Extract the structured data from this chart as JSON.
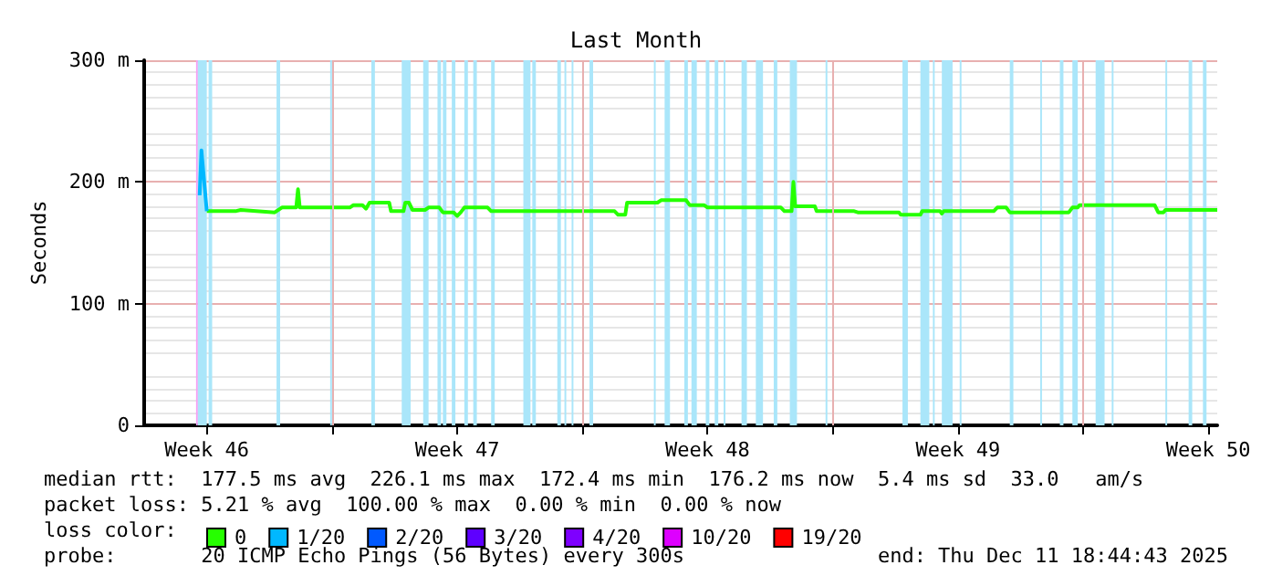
{
  "chart_data": {
    "type": "line",
    "title": "Last Month",
    "ylabel": "Seconds",
    "xlim": [
      "2025-11-11T18:00",
      "2025-12-11T18:00"
    ],
    "xticks": [
      {
        "value": "2025-11-13T12:00",
        "label": "Week 46"
      },
      {
        "value": "2025-11-17T00:00",
        "label": null
      },
      {
        "value": "2025-11-20T12:00",
        "label": "Week 47"
      },
      {
        "value": "2025-11-24T00:00",
        "label": null
      },
      {
        "value": "2025-11-27T12:00",
        "label": "Week 48"
      },
      {
        "value": "2025-12-01T00:00",
        "label": null
      },
      {
        "value": "2025-12-04T12:00",
        "label": "Week 49"
      },
      {
        "value": "2025-12-08T00:00",
        "label": null
      },
      {
        "value": "2025-12-11T12:00",
        "label": "Week 50"
      }
    ],
    "ylim": [
      0,
      300
    ],
    "yticks": [
      {
        "value": 0,
        "label": "0"
      },
      {
        "value": 100,
        "label": "100 m"
      },
      {
        "value": 200,
        "label": "200 m"
      },
      {
        "value": 300,
        "label": "300 m"
      }
    ],
    "grid": true,
    "legend": "bottom",
    "marker": "none",
    "line_style": "solid",
    "series": [
      {
        "name": "0",
        "color": "#26ff00",
        "x": [
          "2025-11-13T12:00",
          "2025-11-14T07:12",
          "2025-11-14T10:48",
          "2025-11-15T09:36",
          "2025-11-15T14:24",
          "2025-11-16T00:00",
          "2025-11-16T01:12",
          "2025-11-16T02:24",
          "2025-11-17T12:00",
          "2025-11-17T14:24",
          "2025-11-17T20:24",
          "2025-11-17T22:48",
          "2025-11-18T01:12",
          "2025-11-18T14:24",
          "2025-11-18T15:36",
          "2025-11-19T00:00",
          "2025-11-19T01:12",
          "2025-11-19T03:36",
          "2025-11-19T06:00",
          "2025-11-19T14:24",
          "2025-11-19T16:48",
          "2025-11-20T00:00",
          "2025-11-20T02:24",
          "2025-11-20T09:36",
          "2025-11-20T12:00",
          "2025-11-20T14:24",
          "2025-11-20T16:48",
          "2025-11-21T08:24",
          "2025-11-21T10:48",
          "2025-11-24T21:36",
          "2025-11-25T00:00",
          "2025-11-25T04:48",
          "2025-11-25T06:00",
          "2025-11-26T02:24",
          "2025-11-26T04:48",
          "2025-11-26T21:36",
          "2025-11-27T00:00",
          "2025-11-27T09:36",
          "2025-11-27T12:00",
          "2025-11-29T13:12",
          "2025-11-29T15:36",
          "2025-11-29T20:24",
          "2025-11-29T21:36",
          "2025-11-29T22:48",
          "2025-11-30T12:00",
          "2025-11-30T13:12",
          "2025-12-01T14:24",
          "2025-12-01T16:48",
          "2025-12-02T20:24",
          "2025-12-02T21:36",
          "2025-12-03T10:48",
          "2025-12-03T12:00",
          "2025-12-04T00:00",
          "2025-12-04T01:12",
          "2025-12-04T02:24",
          "2025-12-05T12:00",
          "2025-12-05T14:24",
          "2025-12-05T20:24",
          "2025-12-05T22:48",
          "2025-12-07T14:24",
          "2025-12-07T16:48",
          "2025-12-07T20:24",
          "2025-12-07T21:36",
          "2025-12-10T00:00",
          "2025-12-10T02:24",
          "2025-12-10T06:00",
          "2025-12-10T07:12",
          "2025-12-11T18:00"
        ],
        "values": [
          176,
          176,
          177,
          175,
          179,
          179,
          194,
          179,
          179,
          181,
          181,
          178,
          183,
          183,
          176,
          176,
          183,
          183,
          177,
          177,
          179,
          179,
          175,
          175,
          172,
          175,
          179,
          179,
          176,
          176,
          173,
          173,
          183,
          183,
          185,
          185,
          181,
          181,
          179,
          179,
          176,
          176,
          200,
          180,
          180,
          176,
          176,
          175,
          175,
          173,
          173,
          176,
          176,
          174,
          176,
          176,
          179,
          179,
          175,
          175,
          179,
          179,
          181,
          181,
          175,
          175,
          177,
          177
        ]
      },
      {
        "name": "1/20",
        "color": "#00b8ff",
        "x": [
          "2025-11-13T07:12",
          "2025-11-13T08:24",
          "2025-11-13T12:00"
        ],
        "values": [
          189,
          226,
          176
        ]
      },
      {
        "name": "2/20",
        "color": "#0059ff"
      },
      {
        "name": "3/20",
        "color": "#5e00ff"
      },
      {
        "name": "4/20",
        "color": "#7e00ff"
      },
      {
        "name": "10/20",
        "color": "#dd00ff"
      },
      {
        "name": "19/20",
        "color": "#ff0000"
      }
    ],
    "bands": [
      {
        "axis": "x",
        "from": "2025-11-13T04:48",
        "to": "2025-11-13T06:00",
        "color": "#f4a0f4"
      },
      {
        "axis": "x",
        "from": "2025-11-13T06:00",
        "to": "2025-11-13T12:00",
        "color": "#aae6fa"
      },
      {
        "axis": "x",
        "from": "2025-11-13T13:12",
        "to": "2025-11-13T15:36",
        "color": "#aae6fa"
      },
      {
        "axis": "x",
        "from": "2025-11-15T10:48",
        "to": "2025-11-15T13:12",
        "color": "#aae6fa"
      },
      {
        "axis": "x",
        "from": "2025-11-16T22:48",
        "to": "2025-11-17T00:00",
        "color": "#aae6fa"
      },
      {
        "axis": "x",
        "from": "2025-11-18T02:24",
        "to": "2025-11-18T04:48",
        "color": "#aae6fa"
      },
      {
        "axis": "x",
        "from": "2025-11-18T22:48",
        "to": "2025-11-19T04:48",
        "color": "#aae6fa"
      },
      {
        "axis": "x",
        "from": "2025-11-19T13:12",
        "to": "2025-11-19T16:48",
        "color": "#aae6fa"
      },
      {
        "axis": "x",
        "from": "2025-11-19T22:48",
        "to": "2025-11-20T01:12",
        "color": "#aae6fa"
      },
      {
        "axis": "x",
        "from": "2025-11-20T02:24",
        "to": "2025-11-20T04:48",
        "color": "#aae6fa"
      },
      {
        "axis": "x",
        "from": "2025-11-20T08:24",
        "to": "2025-11-20T10:48",
        "color": "#aae6fa"
      },
      {
        "axis": "x",
        "from": "2025-11-20T16:48",
        "to": "2025-11-20T19:12",
        "color": "#aae6fa"
      },
      {
        "axis": "x",
        "from": "2025-11-20T22:48",
        "to": "2025-11-21T01:12",
        "color": "#aae6fa"
      },
      {
        "axis": "x",
        "from": "2025-11-21T10:48",
        "to": "2025-11-21T13:12",
        "color": "#aae6fa"
      },
      {
        "axis": "x",
        "from": "2025-11-22T08:24",
        "to": "2025-11-22T13:12",
        "color": "#aae6fa"
      },
      {
        "axis": "x",
        "from": "2025-11-22T14:24",
        "to": "2025-11-22T16:48",
        "color": "#aae6fa"
      },
      {
        "axis": "x",
        "from": "2025-11-23T07:12",
        "to": "2025-11-23T09:36",
        "color": "#aae6fa"
      },
      {
        "axis": "x",
        "from": "2025-11-23T12:00",
        "to": "2025-11-23T13:12",
        "color": "#aae6fa"
      },
      {
        "axis": "x",
        "from": "2025-11-23T16:48",
        "to": "2025-11-23T18:00",
        "color": "#aae6fa"
      },
      {
        "axis": "x",
        "from": "2025-11-24T04:48",
        "to": "2025-11-24T07:12",
        "color": "#aae6fa"
      },
      {
        "axis": "x",
        "from": "2025-11-26T00:00",
        "to": "2025-11-26T01:12",
        "color": "#aae6fa"
      },
      {
        "axis": "x",
        "from": "2025-11-26T07:12",
        "to": "2025-11-26T10:48",
        "color": "#aae6fa"
      },
      {
        "axis": "x",
        "from": "2025-11-26T20:24",
        "to": "2025-11-26T22:48",
        "color": "#aae6fa"
      },
      {
        "axis": "x",
        "from": "2025-11-27T01:12",
        "to": "2025-11-27T04:48",
        "color": "#aae6fa"
      },
      {
        "axis": "x",
        "from": "2025-11-27T10:48",
        "to": "2025-11-27T13:12",
        "color": "#aae6fa"
      },
      {
        "axis": "x",
        "from": "2025-11-27T16:48",
        "to": "2025-11-27T19:12",
        "color": "#aae6fa"
      },
      {
        "axis": "x",
        "from": "2025-11-27T22:48",
        "to": "2025-11-28T00:00",
        "color": "#aae6fa"
      },
      {
        "axis": "x",
        "from": "2025-11-28T10:48",
        "to": "2025-11-28T14:24",
        "color": "#aae6fa"
      },
      {
        "axis": "x",
        "from": "2025-11-28T20:24",
        "to": "2025-11-29T01:12",
        "color": "#aae6fa"
      },
      {
        "axis": "x",
        "from": "2025-11-29T08:24",
        "to": "2025-11-29T10:48",
        "color": "#aae6fa"
      },
      {
        "axis": "x",
        "from": "2025-11-29T19:12",
        "to": "2025-11-30T00:00",
        "color": "#aae6fa"
      },
      {
        "axis": "x",
        "from": "2025-11-30T19:12",
        "to": "2025-11-30T20:24",
        "color": "#aae6fa"
      },
      {
        "axis": "x",
        "from": "2025-12-02T22:48",
        "to": "2025-12-03T02:24",
        "color": "#aae6fa"
      },
      {
        "axis": "x",
        "from": "2025-12-03T10:48",
        "to": "2025-12-03T16:48",
        "color": "#aae6fa"
      },
      {
        "axis": "x",
        "from": "2025-12-03T19:12",
        "to": "2025-12-03T20:24",
        "color": "#aae6fa"
      },
      {
        "axis": "x",
        "from": "2025-12-04T01:12",
        "to": "2025-12-04T08:24",
        "color": "#aae6fa"
      },
      {
        "axis": "x",
        "from": "2025-12-04T13:12",
        "to": "2025-12-04T14:24",
        "color": "#aae6fa"
      },
      {
        "axis": "x",
        "from": "2025-12-05T22:48",
        "to": "2025-12-06T01:12",
        "color": "#aae6fa"
      },
      {
        "axis": "x",
        "from": "2025-12-06T19:12",
        "to": "2025-12-06T20:24",
        "color": "#aae6fa"
      },
      {
        "axis": "x",
        "from": "2025-12-07T08:24",
        "to": "2025-12-07T10:48",
        "color": "#aae6fa"
      },
      {
        "axis": "x",
        "from": "2025-12-07T16:48",
        "to": "2025-12-07T20:24",
        "color": "#aae6fa"
      },
      {
        "axis": "x",
        "from": "2025-12-08T08:24",
        "to": "2025-12-08T14:24",
        "color": "#aae6fa"
      },
      {
        "axis": "x",
        "from": "2025-12-08T19:12",
        "to": "2025-12-08T20:24",
        "color": "#aae6fa"
      },
      {
        "axis": "x",
        "from": "2025-12-10T07:12",
        "to": "2025-12-10T08:24",
        "color": "#aae6fa"
      },
      {
        "axis": "x",
        "from": "2025-12-10T22:48",
        "to": "2025-12-11T01:12",
        "color": "#aae6fa"
      },
      {
        "axis": "x",
        "from": "2025-12-11T08:24",
        "to": "2025-12-11T10:48",
        "color": "#aae6fa"
      }
    ],
    "legend_title": "loss color:",
    "annotations": [
      "median rtt:  177.5 ms avg  226.1 ms max  172.4 ms min  176.2 ms now  5.4 ms sd  33.0   am/s",
      "packet loss: 5.21 % avg  100.00 % max  0.00 % min  0.00 % now",
      "probe:       20 ICMP Echo Pings (56 Bytes) every 300s",
      "end: Thu Dec 11 18:44:43 2025"
    ]
  }
}
